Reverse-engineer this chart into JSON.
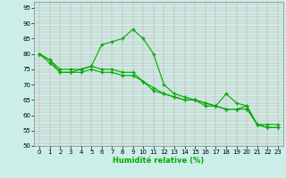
{
  "title": "",
  "xlabel": "Humidité relative (%)",
  "ylabel": "",
  "background_color": "#cceee8",
  "grid_color_major": "#bbbbbb",
  "grid_color_minor": "#dddddd",
  "line_color": "#00aa00",
  "xlim": [
    -0.5,
    23.5
  ],
  "ylim": [
    50,
    97
  ],
  "xticks": [
    0,
    1,
    2,
    3,
    4,
    5,
    6,
    7,
    8,
    9,
    10,
    11,
    12,
    13,
    14,
    15,
    16,
    17,
    18,
    19,
    20,
    21,
    22,
    23
  ],
  "yticks": [
    50,
    55,
    60,
    65,
    70,
    75,
    80,
    85,
    90,
    95
  ],
  "line1": [
    80,
    77,
    74,
    74,
    75,
    76,
    83,
    84,
    85,
    88,
    85,
    80,
    70,
    67,
    66,
    65,
    64,
    63,
    67,
    64,
    63,
    57,
    57,
    57
  ],
  "line2": [
    80,
    78,
    74,
    74,
    74,
    75,
    74,
    74,
    73,
    73,
    71,
    68,
    67,
    66,
    65,
    65,
    63,
    63,
    62,
    62,
    63,
    57,
    56,
    56
  ],
  "line3": [
    80,
    78,
    75,
    75,
    75,
    76,
    75,
    75,
    74,
    74,
    71,
    69,
    67,
    66,
    65,
    65,
    64,
    63,
    62,
    62,
    62,
    57,
    56,
    56
  ]
}
